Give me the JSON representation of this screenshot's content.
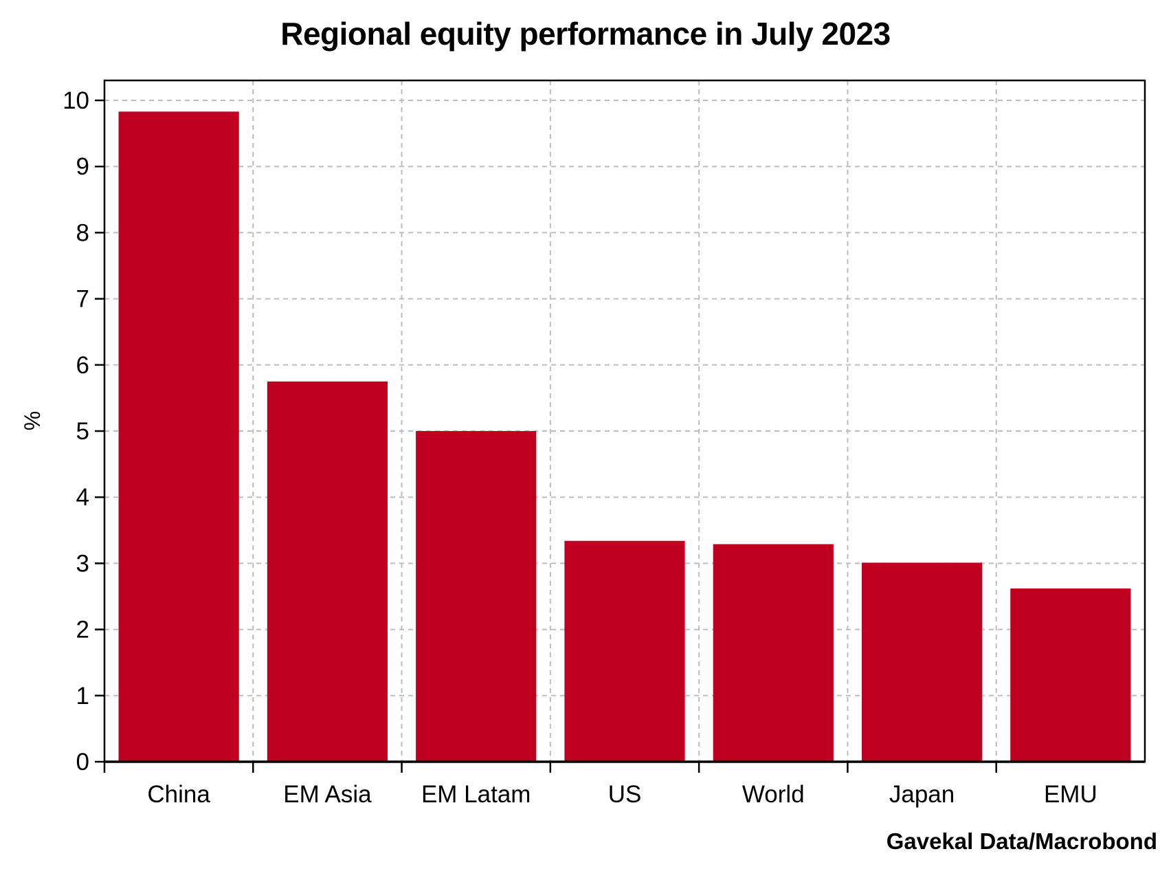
{
  "chart_data": {
    "type": "bar",
    "title": "Regional equity performance in July 2023",
    "ylabel": "%",
    "xlabel": "",
    "categories": [
      "China",
      "EM Asia",
      "EM Latam",
      "US",
      "World",
      "Japan",
      "EMU"
    ],
    "series": [
      {
        "values": [
          9.83,
          5.75,
          5.0,
          3.34,
          3.29,
          3.01,
          2.62
        ]
      }
    ],
    "ylim": [
      0,
      10.3
    ],
    "yticks": [
      "0",
      "1",
      "2",
      "3",
      "4",
      "5",
      "6",
      "7",
      "8",
      "9",
      "10"
    ],
    "grid": true,
    "legend": "none",
    "source": "Gavekal Data/Macrobond",
    "colors": {
      "bar": "#c00020",
      "grid": "#bdbdbd",
      "axis": "#000000"
    }
  }
}
